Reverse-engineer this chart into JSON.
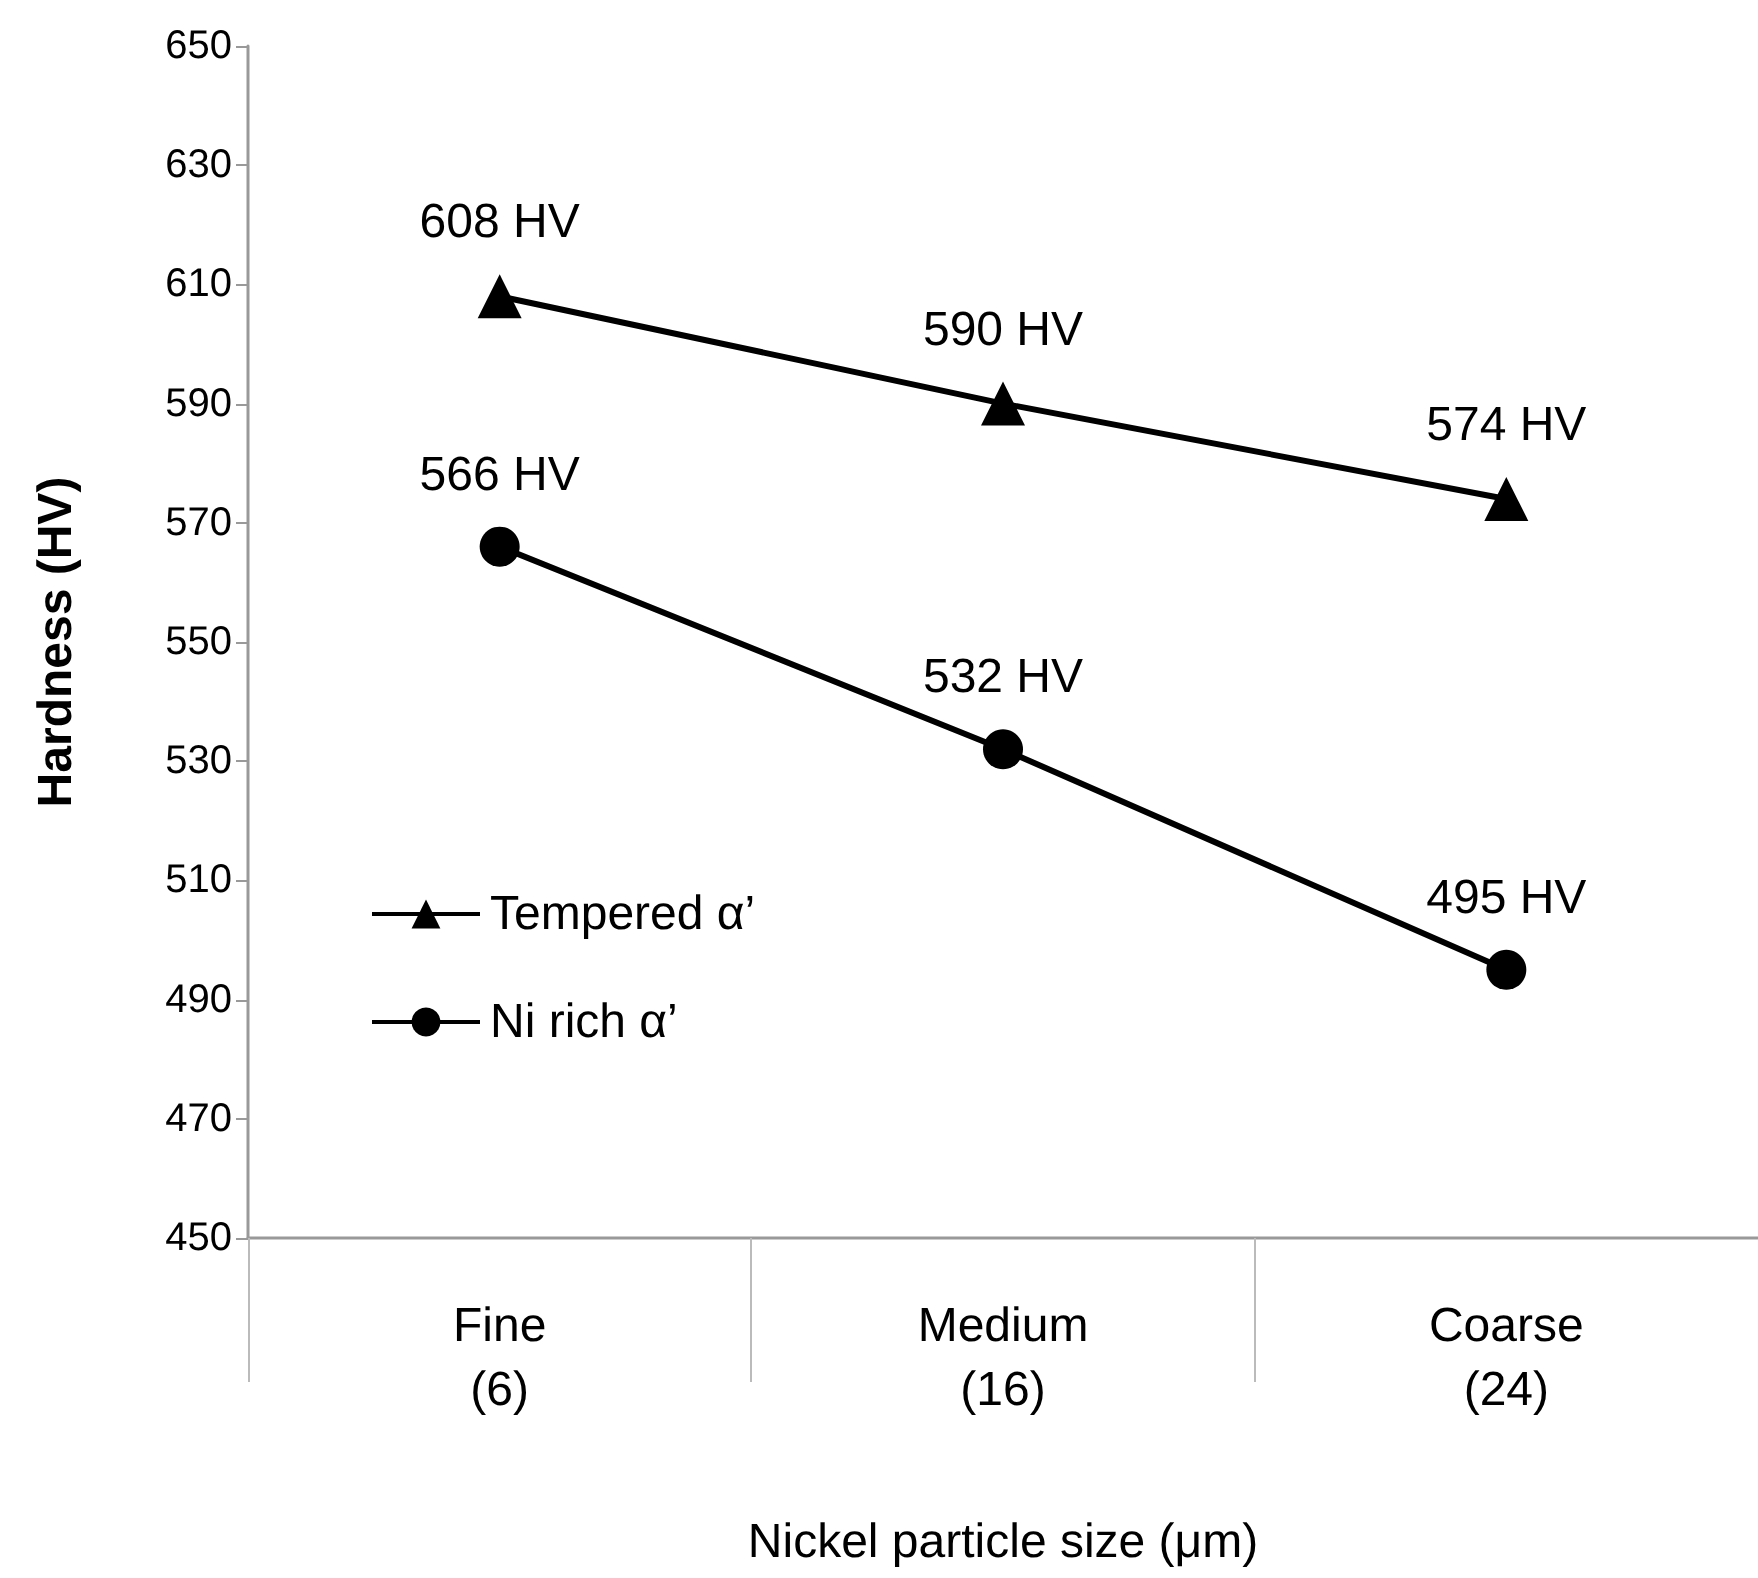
{
  "chart_data": {
    "type": "line",
    "xlabel": "Nickel particle size (μm)",
    "ylabel": "Hardness (HV)",
    "categories": [
      "Fine\n(6)",
      "Medium\n(16)",
      "Coarse\n(24)"
    ],
    "ylim": [
      450,
      650
    ],
    "yticks": [
      450,
      470,
      490,
      510,
      530,
      550,
      570,
      590,
      610,
      630,
      650
    ],
    "grid": false,
    "legend": "left",
    "series": [
      {
        "name": "Tempered α’",
        "color": "#000000",
        "marker": "triangle",
        "values": [
          608,
          590,
          574
        ],
        "value_labels": [
          "608 HV",
          "590 HV",
          "574 HV"
        ]
      },
      {
        "name": "Ni rich α’",
        "color": "#000000",
        "marker": "circle",
        "values": [
          566,
          532,
          495
        ],
        "value_labels": [
          "566 HV",
          "532 HV",
          "495 HV"
        ]
      }
    ]
  }
}
